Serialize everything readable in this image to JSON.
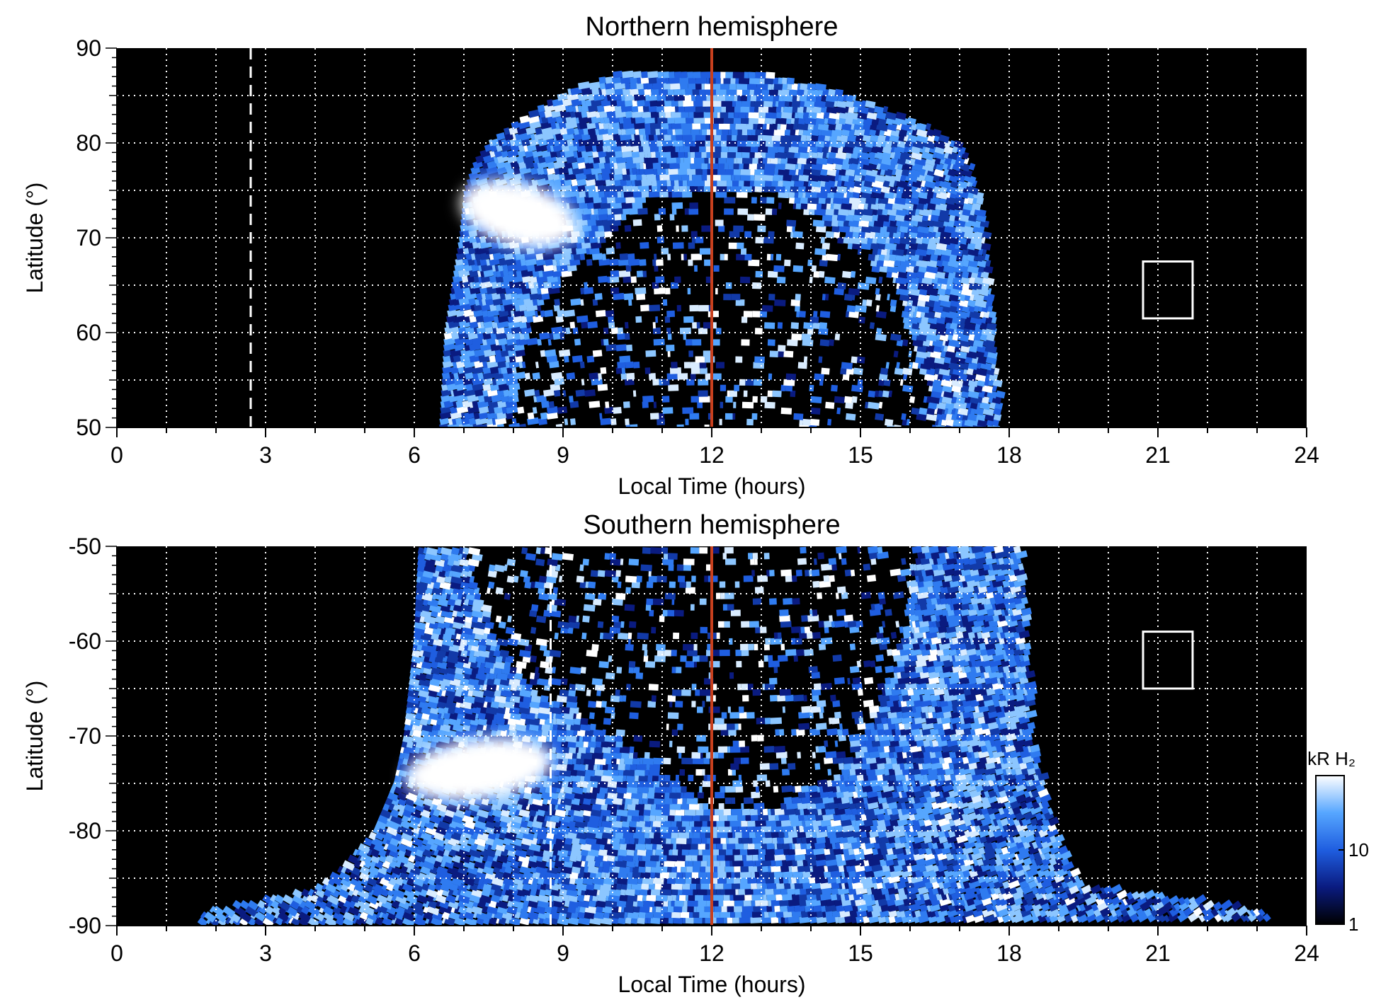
{
  "chart_data": [
    {
      "type": "heatmap",
      "title": "Northern hemisphere",
      "xlabel": "Local Time (hours)",
      "ylabel": "Latitude (°)",
      "xlim": [
        0,
        24
      ],
      "ylim": [
        50,
        90
      ],
      "x_ticks": [
        0,
        3,
        6,
        9,
        12,
        15,
        18,
        21,
        24
      ],
      "y_ticks": [
        50,
        60,
        70,
        80,
        90
      ],
      "grid": true,
      "background": "#000000",
      "noon_line": {
        "x": 12,
        "color": "#c8401e"
      },
      "dashed_line": {
        "x": 2.7,
        "color": "#ffffff"
      },
      "box": {
        "x0": 20.7,
        "x1": 21.7,
        "y0": 61.5,
        "y1": 67.5
      },
      "emission": {
        "coverage_by_latitude": [
          [
            50,
            6.5,
            17.8
          ],
          [
            60,
            6.6,
            17.7
          ],
          [
            70,
            6.9,
            17.5
          ],
          [
            75,
            7.0,
            17.4
          ],
          [
            78,
            7.2,
            17.2
          ],
          [
            80,
            7.5,
            17.0
          ],
          [
            82,
            8.0,
            16.3
          ],
          [
            84,
            8.6,
            15.3
          ],
          [
            86,
            9.3,
            14.2
          ],
          [
            87,
            10.0,
            13.2
          ]
        ],
        "dim_core": [
          [
            50,
            7.8,
            16.4
          ],
          [
            60,
            8.2,
            16.0
          ],
          [
            65,
            8.8,
            15.6
          ],
          [
            70,
            9.8,
            14.8
          ],
          [
            74,
            10.6,
            13.6
          ],
          [
            75,
            12.2,
            13.4
          ]
        ],
        "bright_spot": {
          "x": 8.1,
          "y": 72.5,
          "rx": 1.2,
          "ry": 3.3,
          "rotation": 15
        }
      }
    },
    {
      "type": "heatmap",
      "title": "Southern hemisphere",
      "xlabel": "Local Time (hours)",
      "ylabel": "Latitude (°)",
      "xlim": [
        0,
        24
      ],
      "ylim": [
        -90,
        -50
      ],
      "x_ticks": [
        0,
        3,
        6,
        9,
        12,
        15,
        18,
        21,
        24
      ],
      "y_ticks": [
        -90,
        -80,
        -70,
        -60,
        -50
      ],
      "grid": true,
      "background": "#000000",
      "noon_line": {
        "x": 12,
        "color": "#c8401e"
      },
      "dashed_line": {
        "x": 8.75,
        "color": "#ffffff"
      },
      "box": {
        "x0": 20.7,
        "x1": 21.7,
        "y0": -65,
        "y1": -59
      },
      "emission": {
        "coverage_by_latitude": [
          [
            -50,
            6.1,
            18.2
          ],
          [
            -60,
            6.0,
            18.3
          ],
          [
            -70,
            5.8,
            18.4
          ],
          [
            -75,
            5.6,
            18.6
          ],
          [
            -80,
            5.2,
            18.9
          ],
          [
            -84,
            4.5,
            19.2
          ],
          [
            -86,
            4.0,
            19.5
          ],
          [
            -88,
            2.0,
            22.5
          ],
          [
            -89,
            1.7,
            23.2
          ]
        ],
        "dim_core": [
          [
            -50,
            7.0,
            16.0
          ],
          [
            -60,
            7.6,
            15.8
          ],
          [
            -65,
            8.3,
            15.4
          ],
          [
            -70,
            10.0,
            15.0
          ],
          [
            -74,
            11.0,
            14.4
          ],
          [
            -78,
            12.0,
            13.0
          ]
        ],
        "bright_spot": {
          "x": 7.3,
          "y": -73.5,
          "rx": 1.5,
          "ry": 3.2,
          "rotation": -8
        }
      }
    }
  ],
  "colorbar": {
    "label": "kR H₂",
    "ticks": [
      "1",
      "10"
    ],
    "scale": "log",
    "colors": [
      "#000000",
      "#0a1b80",
      "#1f5ee0",
      "#56a6ff",
      "#ffffff"
    ]
  }
}
